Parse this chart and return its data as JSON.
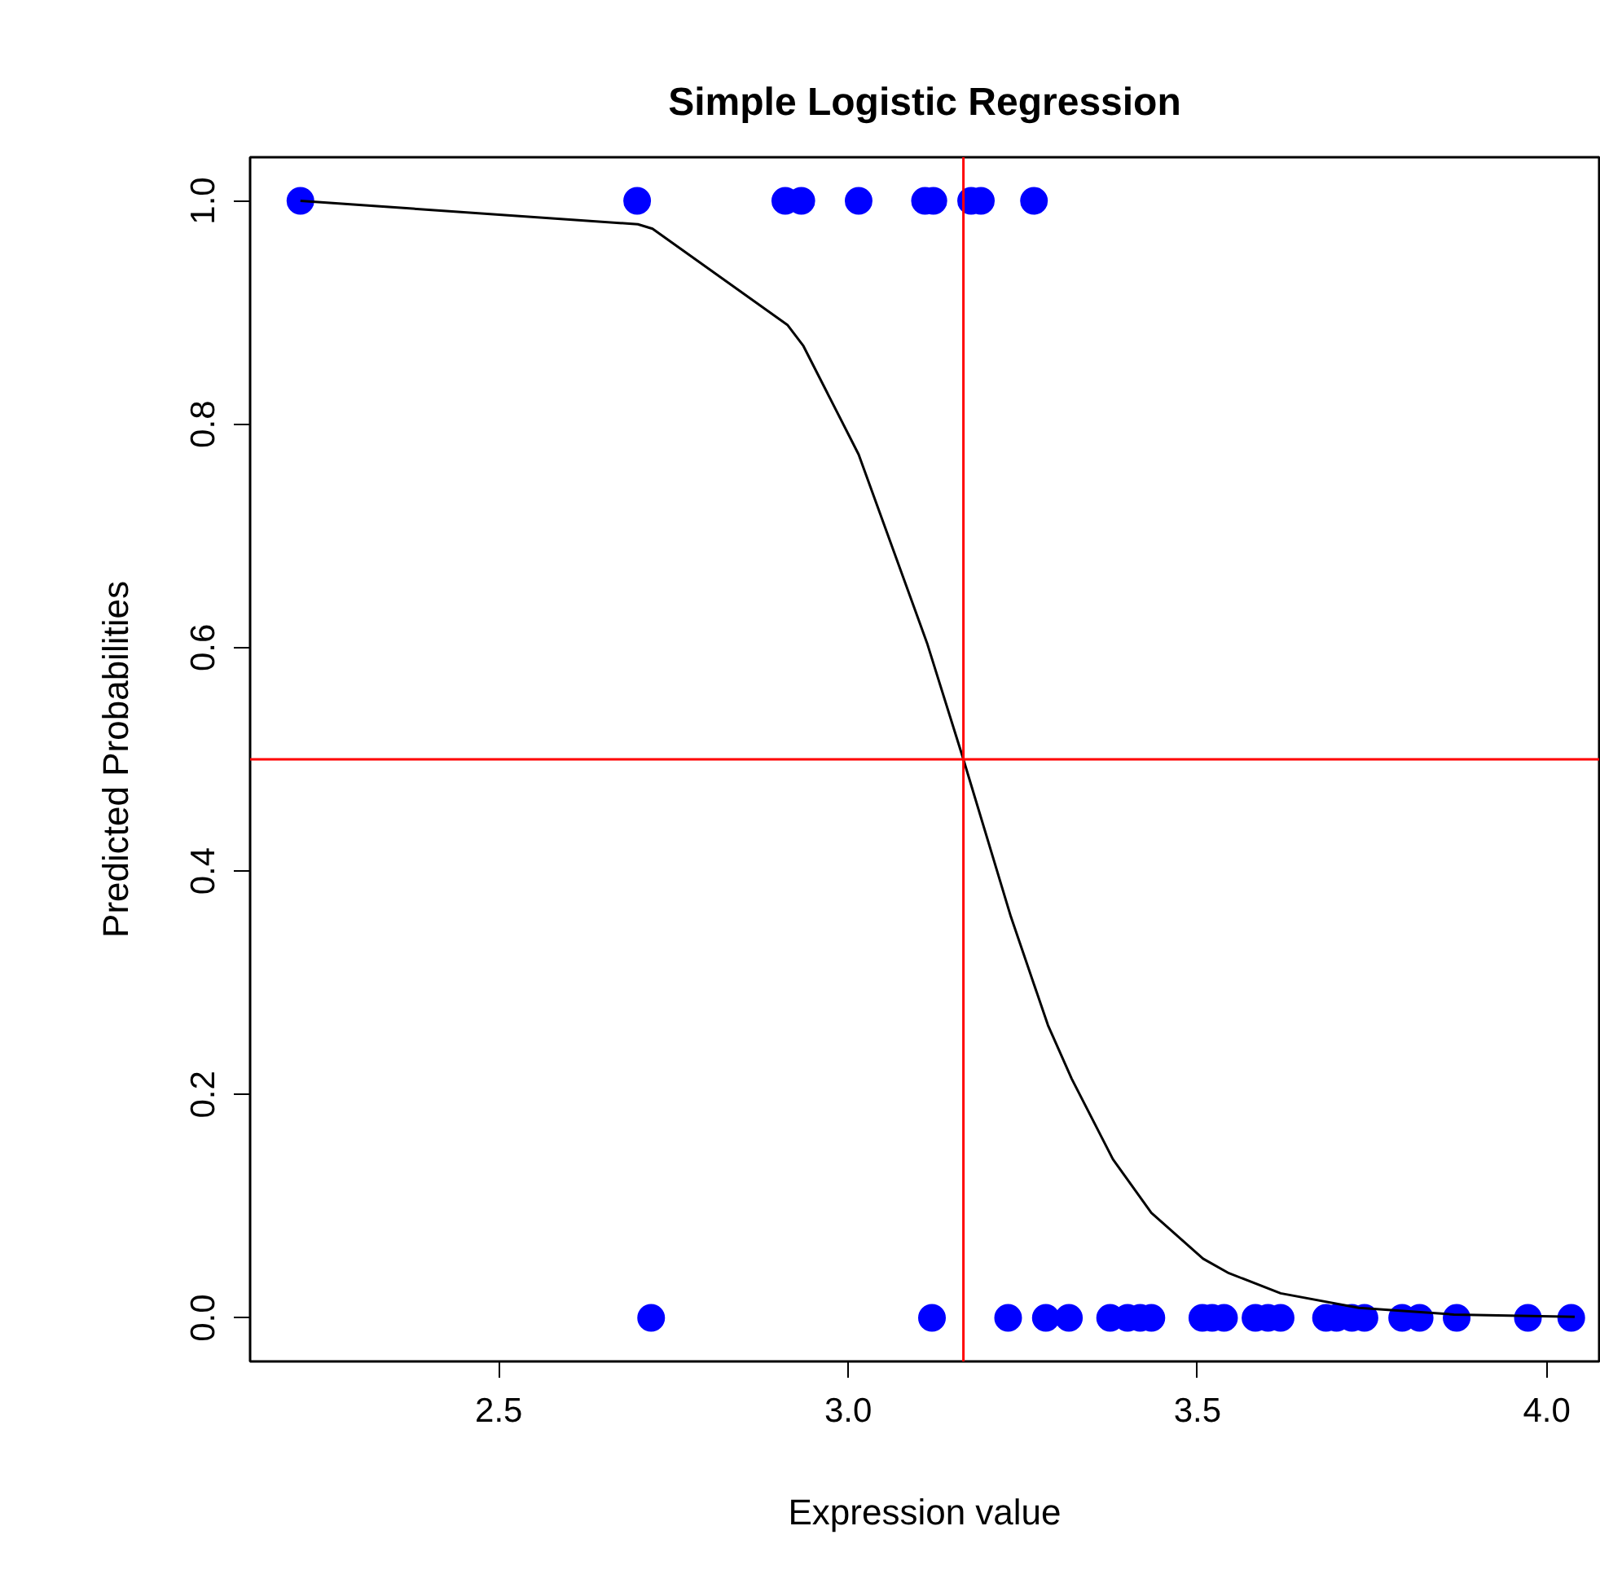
{
  "chart_data": {
    "type": "scatter",
    "title": "Simple Logistic Regression",
    "xlabel": "Expression value",
    "ylabel": "Predicted Probabilities",
    "xlim": [
      2.144,
      4.075
    ],
    "ylim": [
      -0.039,
      1.039
    ],
    "xticks": [
      2.5,
      {
        "value": 3,
        "label": "3.0"
      },
      3.5,
      {
        "value": 4,
        "label": "4.0"
      }
    ],
    "yticks": [
      {
        "value": 0,
        "label": "0.0"
      },
      0.2,
      0.4,
      0.6,
      0.8,
      {
        "value": 1,
        "label": "1.0"
      }
    ],
    "grid": false,
    "series": [
      {
        "marker": "circle",
        "color": "#0000ff",
        "x": [
          2.216,
          2.698,
          2.91,
          2.933,
          3.015,
          3.11,
          3.122,
          3.176,
          3.19,
          3.266,
          2.718,
          3.12,
          3.229,
          3.283,
          3.316,
          3.375,
          3.4,
          3.418,
          3.434,
          3.507,
          3.521,
          3.538,
          3.583,
          3.601,
          3.619,
          3.684,
          3.699,
          3.721,
          3.739,
          3.793,
          3.818,
          3.871,
          3.973,
          4.035
        ],
        "values": [
          1,
          1,
          1,
          1,
          1,
          1,
          1,
          1,
          1,
          1,
          0,
          0,
          0,
          0,
          0,
          0,
          0,
          0,
          0,
          0,
          0,
          0,
          0,
          0,
          0,
          0,
          0,
          0,
          0,
          0,
          0,
          0,
          0,
          0
        ]
      },
      {
        "type": "line",
        "marker": "none",
        "line_style": "solid",
        "color": "#000000",
        "x": [
          2.216,
          2.699,
          2.72,
          2.913,
          2.936,
          3.015,
          3.113,
          3.165,
          3.233,
          3.286,
          3.32,
          3.379,
          3.434,
          3.508,
          3.545,
          3.619,
          3.731,
          3.867,
          4.04
        ],
        "values": [
          1.0,
          0.979,
          0.975,
          0.889,
          0.87,
          0.773,
          0.604,
          0.5,
          0.359,
          0.262,
          0.214,
          0.142,
          0.094,
          0.053,
          0.04,
          0.022,
          0.009,
          0.003,
          0.001
        ]
      }
    ],
    "ref_lines": [
      {
        "axis": "x",
        "value": 3.165,
        "color": "#ff0000"
      },
      {
        "axis": "y",
        "value": 0.5,
        "color": "#ff0000"
      }
    ]
  }
}
